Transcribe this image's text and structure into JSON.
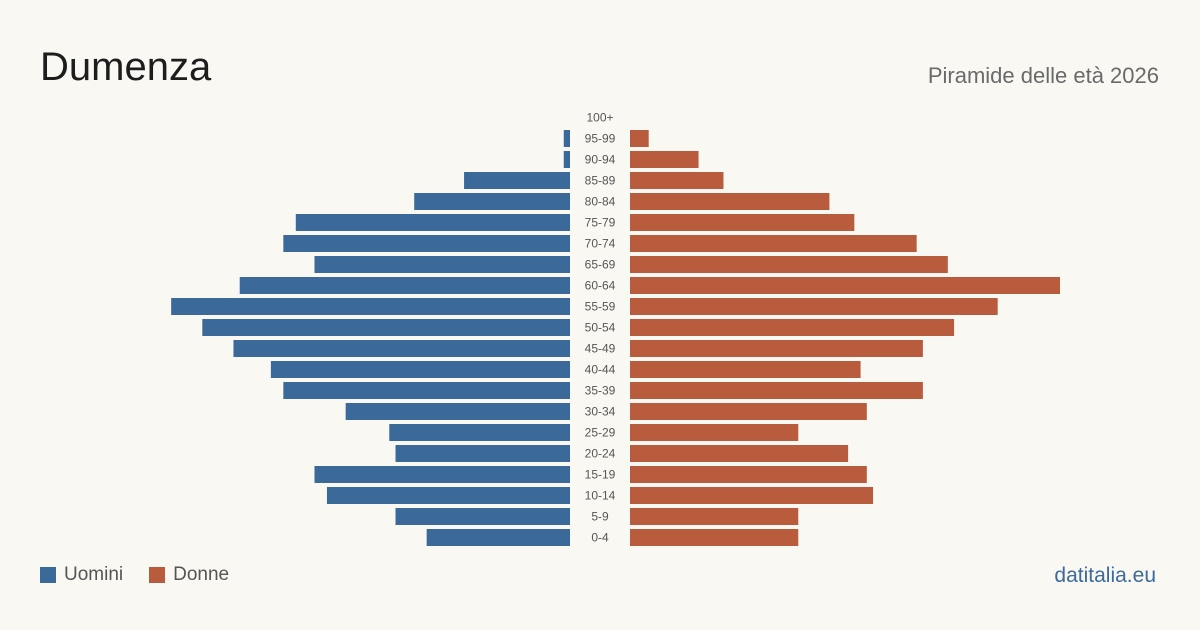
{
  "header": {
    "title": "Dumenza",
    "subtitle": "Piramide delle età 2026"
  },
  "legend": {
    "men_label": "Uomini",
    "women_label": "Donne"
  },
  "footer": {
    "source": "datitalia.eu"
  },
  "colors": {
    "men": "#3b6a9a",
    "women": "#b95c3d",
    "age_label": "#555555"
  },
  "chart_data": {
    "type": "bar",
    "orientation": "horizontal-population-pyramid",
    "categories": [
      "100+",
      "95-99",
      "90-94",
      "85-89",
      "80-84",
      "75-79",
      "70-74",
      "65-69",
      "60-64",
      "55-59",
      "50-54",
      "45-49",
      "40-44",
      "35-39",
      "30-34",
      "25-29",
      "20-24",
      "15-19",
      "10-14",
      "5-9",
      "0-4"
    ],
    "series": [
      {
        "name": "Uomini",
        "values": [
          0,
          1,
          1,
          17,
          25,
          44,
          46,
          41,
          53,
          64,
          59,
          54,
          48,
          46,
          36,
          29,
          28,
          41,
          39,
          28,
          23
        ]
      },
      {
        "name": "Donne",
        "values": [
          0,
          3,
          11,
          15,
          32,
          36,
          46,
          51,
          69,
          59,
          52,
          47,
          37,
          47,
          38,
          27,
          35,
          38,
          39,
          27,
          27
        ]
      }
    ],
    "xlim": [
      0,
      69
    ],
    "legend_position": "bottom-left",
    "grid": false
  }
}
